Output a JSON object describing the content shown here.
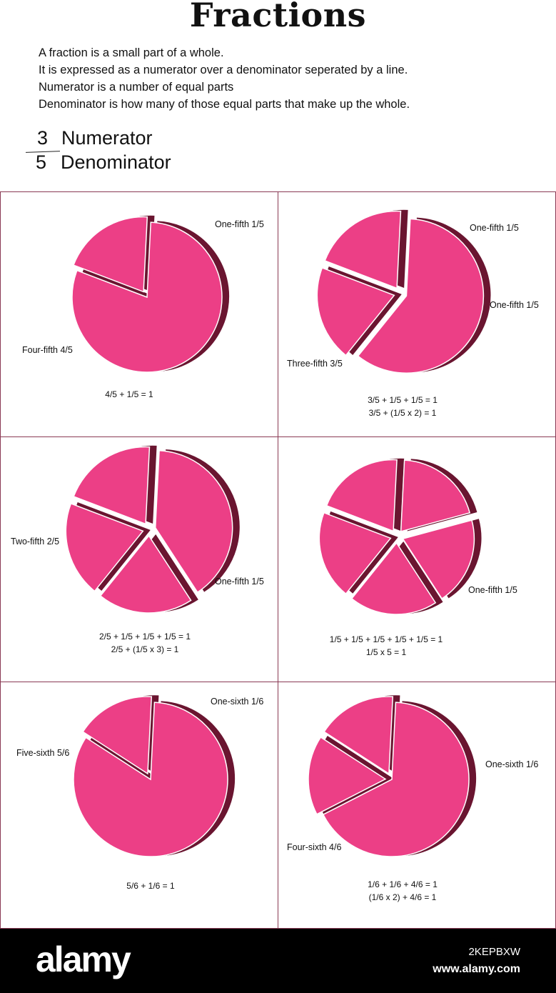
{
  "title": "Fractions",
  "intro": [
    "A fraction is a small part of a whole.",
    "It is expressed as a numerator over a denominator seperated by a line.",
    "Numerator is a number of equal parts",
    "Denominator is how many of those equal parts that make up the whole."
  ],
  "example": {
    "numerator": "3",
    "numerator_label": "Numerator",
    "denominator": "5",
    "denominator_label": "Denominator"
  },
  "colors": {
    "slice": "#EC3F86",
    "slice_side": "#6A1530",
    "panel_border": "#8A3A54",
    "footer_bg": "#000000"
  },
  "panels": [
    {
      "denominator": 5,
      "slices": [
        4,
        1
      ],
      "exploded": [
        1
      ],
      "labels": [
        "Four-fifth 4/5",
        "One-fifth 1/5"
      ],
      "equations": [
        "4/5 + 1/5 = 1"
      ]
    },
    {
      "denominator": 5,
      "slices": [
        3,
        1,
        1
      ],
      "exploded": [
        0,
        1,
        2
      ],
      "labels": [
        "Three-fifth 3/5",
        "One-fifth 1/5",
        "One-fifth 1/5"
      ],
      "equations": [
        "3/5 + 1/5 + 1/5 = 1",
        "3/5 + (1/5 x 2) = 1"
      ]
    },
    {
      "denominator": 5,
      "slices": [
        2,
        1,
        1,
        1
      ],
      "exploded": [
        0,
        1,
        2,
        3
      ],
      "labels": [
        "Two-fifth 2/5",
        "One-fifth 1/5"
      ],
      "equations": [
        "2/5 + 1/5 + 1/5 + 1/5 = 1",
        "2/5 + (1/5 x 3) = 1"
      ]
    },
    {
      "denominator": 5,
      "slices": [
        1,
        1,
        1,
        1,
        1
      ],
      "exploded": [
        0,
        1,
        2,
        3,
        4
      ],
      "labels": [
        "One-fifth 1/5"
      ],
      "equations": [
        "1/5 + 1/5 + 1/5 + 1/5 + 1/5 = 1",
        "1/5 x 5 = 1"
      ]
    },
    {
      "denominator": 6,
      "slices": [
        5,
        1
      ],
      "exploded": [
        1
      ],
      "labels": [
        "Five-sixth 5/6",
        "One-sixth 1/6"
      ],
      "equations": [
        "5/6 + 1/6  = 1"
      ]
    },
    {
      "denominator": 6,
      "slices": [
        4,
        1,
        1
      ],
      "exploded": [
        1,
        2
      ],
      "labels": [
        "Four-sixth 4/6",
        "One-sixth 1/6"
      ],
      "equations": [
        "1/6 + 1/6 + 4/6 = 1",
        "(1/6 x 2) + 4/6 = 1"
      ]
    }
  ],
  "footer": {
    "brand": "alamy",
    "image_code": "2KEPBXW",
    "site": "www.alamy.com"
  }
}
